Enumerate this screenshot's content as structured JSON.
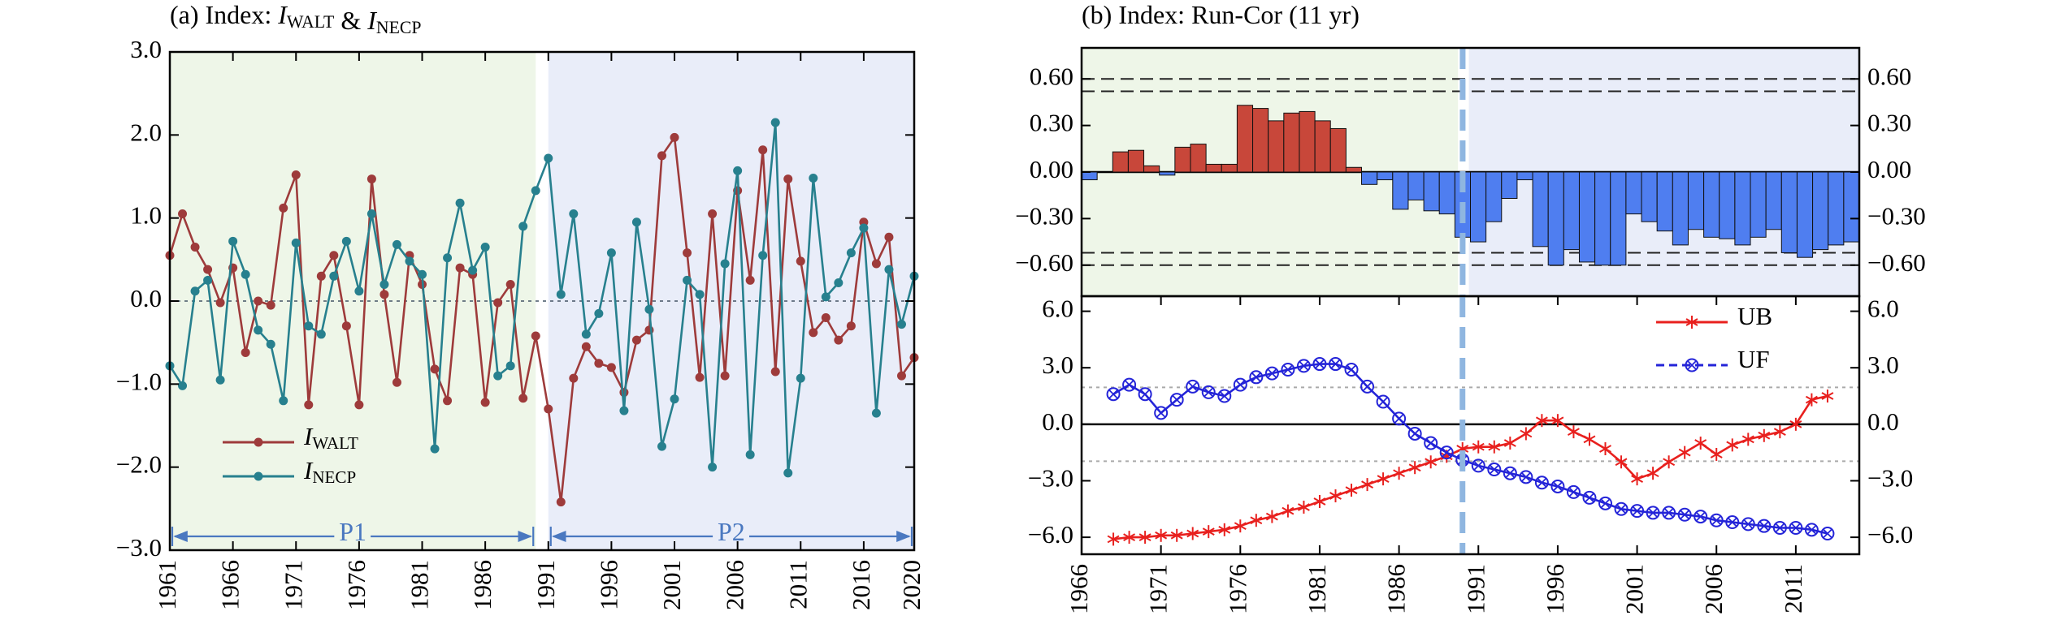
{
  "chart_data": [
    {
      "type": "line",
      "title": "(a) Index: IWALT & INECP",
      "x": [
        1961,
        1962,
        1963,
        1964,
        1965,
        1966,
        1967,
        1968,
        1969,
        1970,
        1971,
        1972,
        1973,
        1974,
        1975,
        1976,
        1977,
        1978,
        1979,
        1980,
        1981,
        1982,
        1983,
        1984,
        1985,
        1986,
        1987,
        1988,
        1989,
        1990,
        1991,
        1992,
        1993,
        1994,
        1995,
        1996,
        1997,
        1998,
        1999,
        2000,
        2001,
        2002,
        2003,
        2004,
        2005,
        2006,
        2007,
        2008,
        2009,
        2010,
        2011,
        2012,
        2013,
        2014,
        2015,
        2016,
        2017,
        2018,
        2019,
        2020
      ],
      "series": [
        {
          "name": "IWALT",
          "color": "#9e3b3b",
          "marker": "dot",
          "values": [
            0.55,
            1.05,
            0.65,
            0.38,
            -0.02,
            0.4,
            -0.62,
            0.0,
            -0.05,
            1.12,
            1.52,
            -1.25,
            0.3,
            0.55,
            -0.3,
            -1.25,
            1.47,
            0.08,
            -0.98,
            0.55,
            0.2,
            -0.82,
            -1.2,
            0.4,
            0.32,
            -1.22,
            -0.02,
            0.2,
            -1.17,
            -0.42,
            -1.3,
            -2.42,
            -0.93,
            -0.55,
            -0.75,
            -0.8,
            -1.1,
            -0.47,
            -0.35,
            1.75,
            1.97,
            0.58,
            -0.92,
            1.05,
            -0.9,
            1.33,
            0.25,
            1.82,
            -0.85,
            1.47,
            0.48,
            -0.38,
            -0.2,
            -0.47,
            -0.3,
            0.95,
            0.45,
            0.77,
            -0.9,
            -0.68
          ]
        },
        {
          "name": "INECP",
          "color": "#27808e",
          "marker": "dot",
          "values": [
            -0.78,
            -1.02,
            0.12,
            0.25,
            -0.95,
            0.72,
            0.32,
            -0.35,
            -0.52,
            -1.2,
            0.7,
            -0.3,
            -0.4,
            0.3,
            0.72,
            0.12,
            1.05,
            0.2,
            0.68,
            0.48,
            0.32,
            -1.78,
            0.52,
            1.18,
            0.37,
            0.65,
            -0.9,
            -0.78,
            0.9,
            1.33,
            1.72,
            0.08,
            1.05,
            -0.4,
            -0.15,
            0.58,
            -1.32,
            0.95,
            -0.1,
            -1.75,
            -1.18,
            0.25,
            0.08,
            -2.0,
            0.45,
            1.57,
            -1.85,
            0.55,
            2.15,
            -2.07,
            -0.93,
            1.48,
            0.05,
            0.22,
            0.58,
            0.88,
            -1.35,
            0.38,
            -0.28,
            0.3
          ]
        }
      ],
      "xlim": [
        1961,
        2020
      ],
      "xticks": [
        1961,
        1966,
        1971,
        1976,
        1981,
        1986,
        1991,
        1996,
        2001,
        2006,
        2011,
        2016,
        2020
      ],
      "ylim": [
        -3,
        3
      ],
      "yticks": [
        {
          "value": -3,
          "label": "−3.0"
        },
        {
          "value": -2,
          "label": "−2.0"
        },
        {
          "value": -1,
          "label": "−1.0"
        },
        {
          "value": 0,
          "label": "0.0"
        },
        {
          "value": 1,
          "label": "1.0"
        },
        {
          "value": 2,
          "label": "2.0"
        },
        {
          "value": 3,
          "label": "3.0"
        }
      ],
      "zero_line_style": "dotted",
      "legend": "lower left",
      "periods": [
        {
          "label": "P1",
          "start": 1961,
          "end": 1990,
          "color": "#eef6e8"
        },
        {
          "label": "P2",
          "start": 1991,
          "end": 2020,
          "color": "#e9edf9"
        }
      ]
    },
    {
      "type": "bar",
      "title": "(b) Index: Run-Cor (11 yr)",
      "x": [
        1966,
        1967,
        1968,
        1969,
        1970,
        1971,
        1972,
        1973,
        1974,
        1975,
        1976,
        1977,
        1978,
        1979,
        1980,
        1981,
        1982,
        1983,
        1984,
        1985,
        1986,
        1987,
        1988,
        1989,
        1990,
        1991,
        1992,
        1993,
        1994,
        1995,
        1996,
        1997,
        1998,
        1999,
        2000,
        2001,
        2002,
        2003,
        2004,
        2005,
        2006,
        2007,
        2008,
        2009,
        2010,
        2011,
        2012,
        2013,
        2014,
        2015
      ],
      "values": [
        -0.05,
        0.0,
        0.13,
        0.14,
        0.04,
        -0.02,
        0.16,
        0.18,
        0.05,
        0.05,
        0.43,
        0.41,
        0.33,
        0.38,
        0.39,
        0.33,
        0.28,
        0.03,
        -0.08,
        -0.05,
        -0.24,
        -0.18,
        -0.25,
        -0.27,
        -0.42,
        -0.45,
        -0.32,
        -0.17,
        -0.05,
        -0.48,
        -0.6,
        -0.5,
        -0.58,
        -0.6,
        -0.6,
        -0.27,
        -0.32,
        -0.38,
        -0.47,
        -0.37,
        -0.42,
        -0.43,
        -0.47,
        -0.42,
        -0.37,
        -0.52,
        -0.55,
        -0.5,
        -0.47,
        -0.45
      ],
      "positive_color": "#c8473a",
      "negative_color": "#4f7ef0",
      "xlim": [
        1965.5,
        2015.5
      ],
      "ylim": [
        -0.8,
        0.8
      ],
      "yticks": [
        {
          "value": -0.6,
          "label": "−0.60"
        },
        {
          "value": -0.3,
          "label": "−0.30"
        },
        {
          "value": 0,
          "label": "0.00"
        },
        {
          "value": 0.3,
          "label": "0.30"
        },
        {
          "value": 0.6,
          "label": "0.60"
        }
      ],
      "hlines": [
        -0.6,
        -0.52,
        0.52,
        0.6
      ],
      "hline_style": "dashed",
      "zero_line_style": "solid",
      "vline": 1990,
      "periods": [
        {
          "start": 1965.5,
          "end": 1989.7,
          "color": "#eef6e8"
        },
        {
          "start": 1990.4,
          "end": 2015.5,
          "color": "#e9edf9"
        }
      ]
    },
    {
      "type": "line",
      "x": [
        1968,
        1969,
        1970,
        1971,
        1972,
        1973,
        1974,
        1975,
        1976,
        1977,
        1978,
        1979,
        1980,
        1981,
        1982,
        1983,
        1984,
        1985,
        1986,
        1987,
        1988,
        1989,
        1990,
        1991,
        1992,
        1993,
        1994,
        1995,
        1996,
        1997,
        1998,
        1999,
        2000,
        2001,
        2002,
        2003,
        2004,
        2005,
        2006,
        2007,
        2008,
        2009,
        2010,
        2011,
        2012,
        2013
      ],
      "series": [
        {
          "name": "UB",
          "color": "#e8201e",
          "marker": "asterisk",
          "values": [
            -6.1,
            -6.0,
            -6.0,
            -5.9,
            -5.9,
            -5.8,
            -5.7,
            -5.6,
            -5.4,
            -5.1,
            -4.9,
            -4.6,
            -4.4,
            -4.1,
            -3.8,
            -3.5,
            -3.2,
            -2.9,
            -2.6,
            -2.3,
            -2.0,
            -1.7,
            -1.3,
            -1.2,
            -1.2,
            -1.0,
            -0.5,
            0.2,
            0.2,
            -0.4,
            -0.8,
            -1.3,
            -2.0,
            -2.9,
            -2.6,
            -2.0,
            -1.5,
            -1.0,
            -1.6,
            -1.1,
            -0.8,
            -0.6,
            -0.4,
            0.0,
            1.3,
            1.5
          ]
        },
        {
          "name": "UF",
          "color": "#2424d8",
          "marker": "circle-x",
          "dashed_legend": true,
          "values": [
            1.6,
            2.1,
            1.6,
            0.6,
            1.3,
            2.0,
            1.7,
            1.5,
            2.1,
            2.5,
            2.7,
            2.9,
            3.1,
            3.2,
            3.2,
            2.9,
            2.0,
            1.2,
            0.3,
            -0.5,
            -1.0,
            -1.5,
            -1.9,
            -2.2,
            -2.4,
            -2.6,
            -2.8,
            -3.1,
            -3.3,
            -3.6,
            -3.9,
            -4.2,
            -4.5,
            -4.6,
            -4.7,
            -4.7,
            -4.8,
            -4.9,
            -5.1,
            -5.2,
            -5.3,
            -5.4,
            -5.5,
            -5.5,
            -5.6,
            -5.8
          ]
        }
      ],
      "xlim": [
        1966,
        2015
      ],
      "xticks": [
        1966,
        1971,
        1976,
        1981,
        1986,
        1991,
        1996,
        2001,
        2006,
        2011
      ],
      "ylim": [
        -6.9,
        6.8
      ],
      "yticks": [
        {
          "value": -6,
          "label": "−6.0"
        },
        {
          "value": -3,
          "label": "−3.0"
        },
        {
          "value": 0,
          "label": "0.0"
        },
        {
          "value": 3,
          "label": "3.0"
        },
        {
          "value": 6,
          "label": "6.0"
        }
      ],
      "hlines": [
        -1.96,
        1.96
      ],
      "hline_style": "dotted",
      "zero_line_style": "solid",
      "vline": 1990,
      "legend": "upper right"
    }
  ]
}
